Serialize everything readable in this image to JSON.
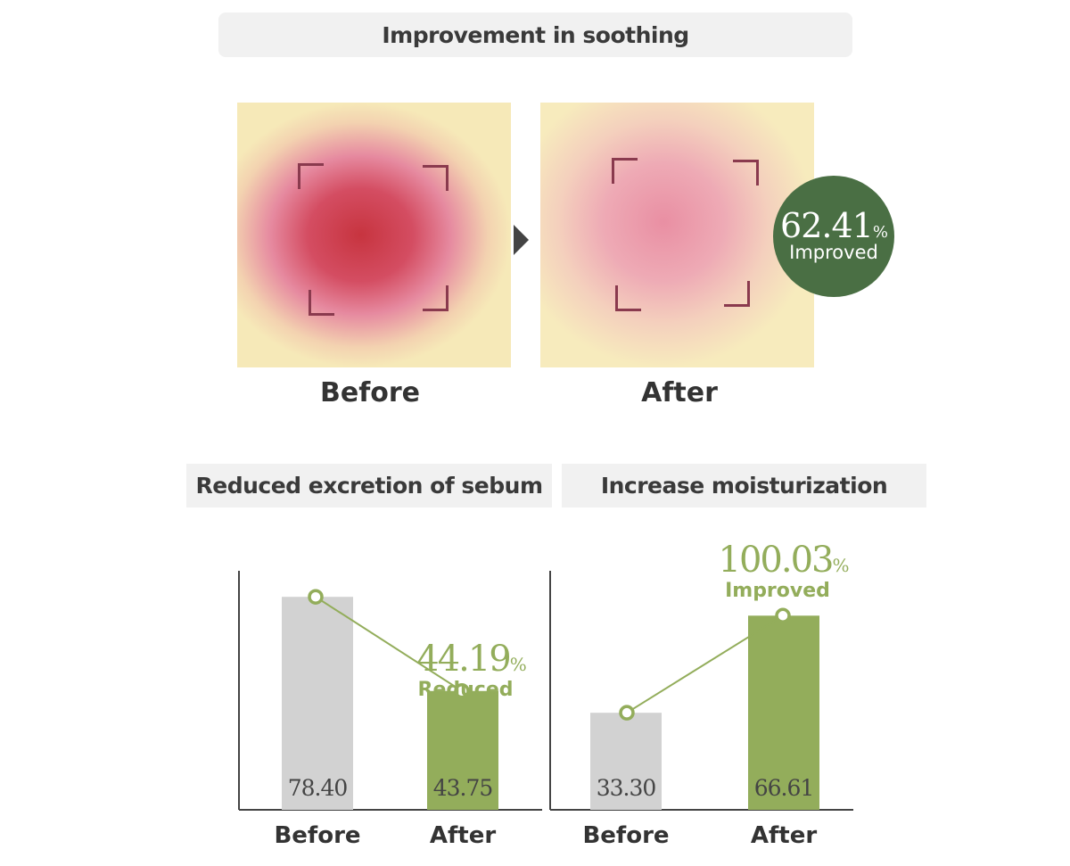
{
  "soothing": {
    "title": "Improvement in soothing",
    "before_label": "Before",
    "after_label": "After",
    "badge_value": "62.41",
    "badge_unit": "%",
    "badge_label": "Improved"
  },
  "colors": {
    "green": "#93ad5b",
    "dark_green": "#4a6f44",
    "gray_bar": "#d2d2d2",
    "header_bg": "#f1f1f1"
  },
  "chart_data": [
    {
      "type": "bar",
      "title": "Reduced excretion of sebum",
      "categories": [
        "Before",
        "After"
      ],
      "values": [
        78.4,
        43.75
      ],
      "value_labels": [
        "78.40",
        "43.75"
      ],
      "annotation_value": "44.19",
      "annotation_unit": "%",
      "annotation_label": "Reduced",
      "ylim": [
        0,
        88
      ]
    },
    {
      "type": "bar",
      "title": "Increase moisturization",
      "categories": [
        "Before",
        "After"
      ],
      "values": [
        33.3,
        66.61
      ],
      "value_labels": [
        "33.30",
        "66.61"
      ],
      "annotation_value": "100.03",
      "annotation_unit": "%",
      "annotation_label": "Improved",
      "ylim": [
        0,
        82
      ]
    }
  ]
}
